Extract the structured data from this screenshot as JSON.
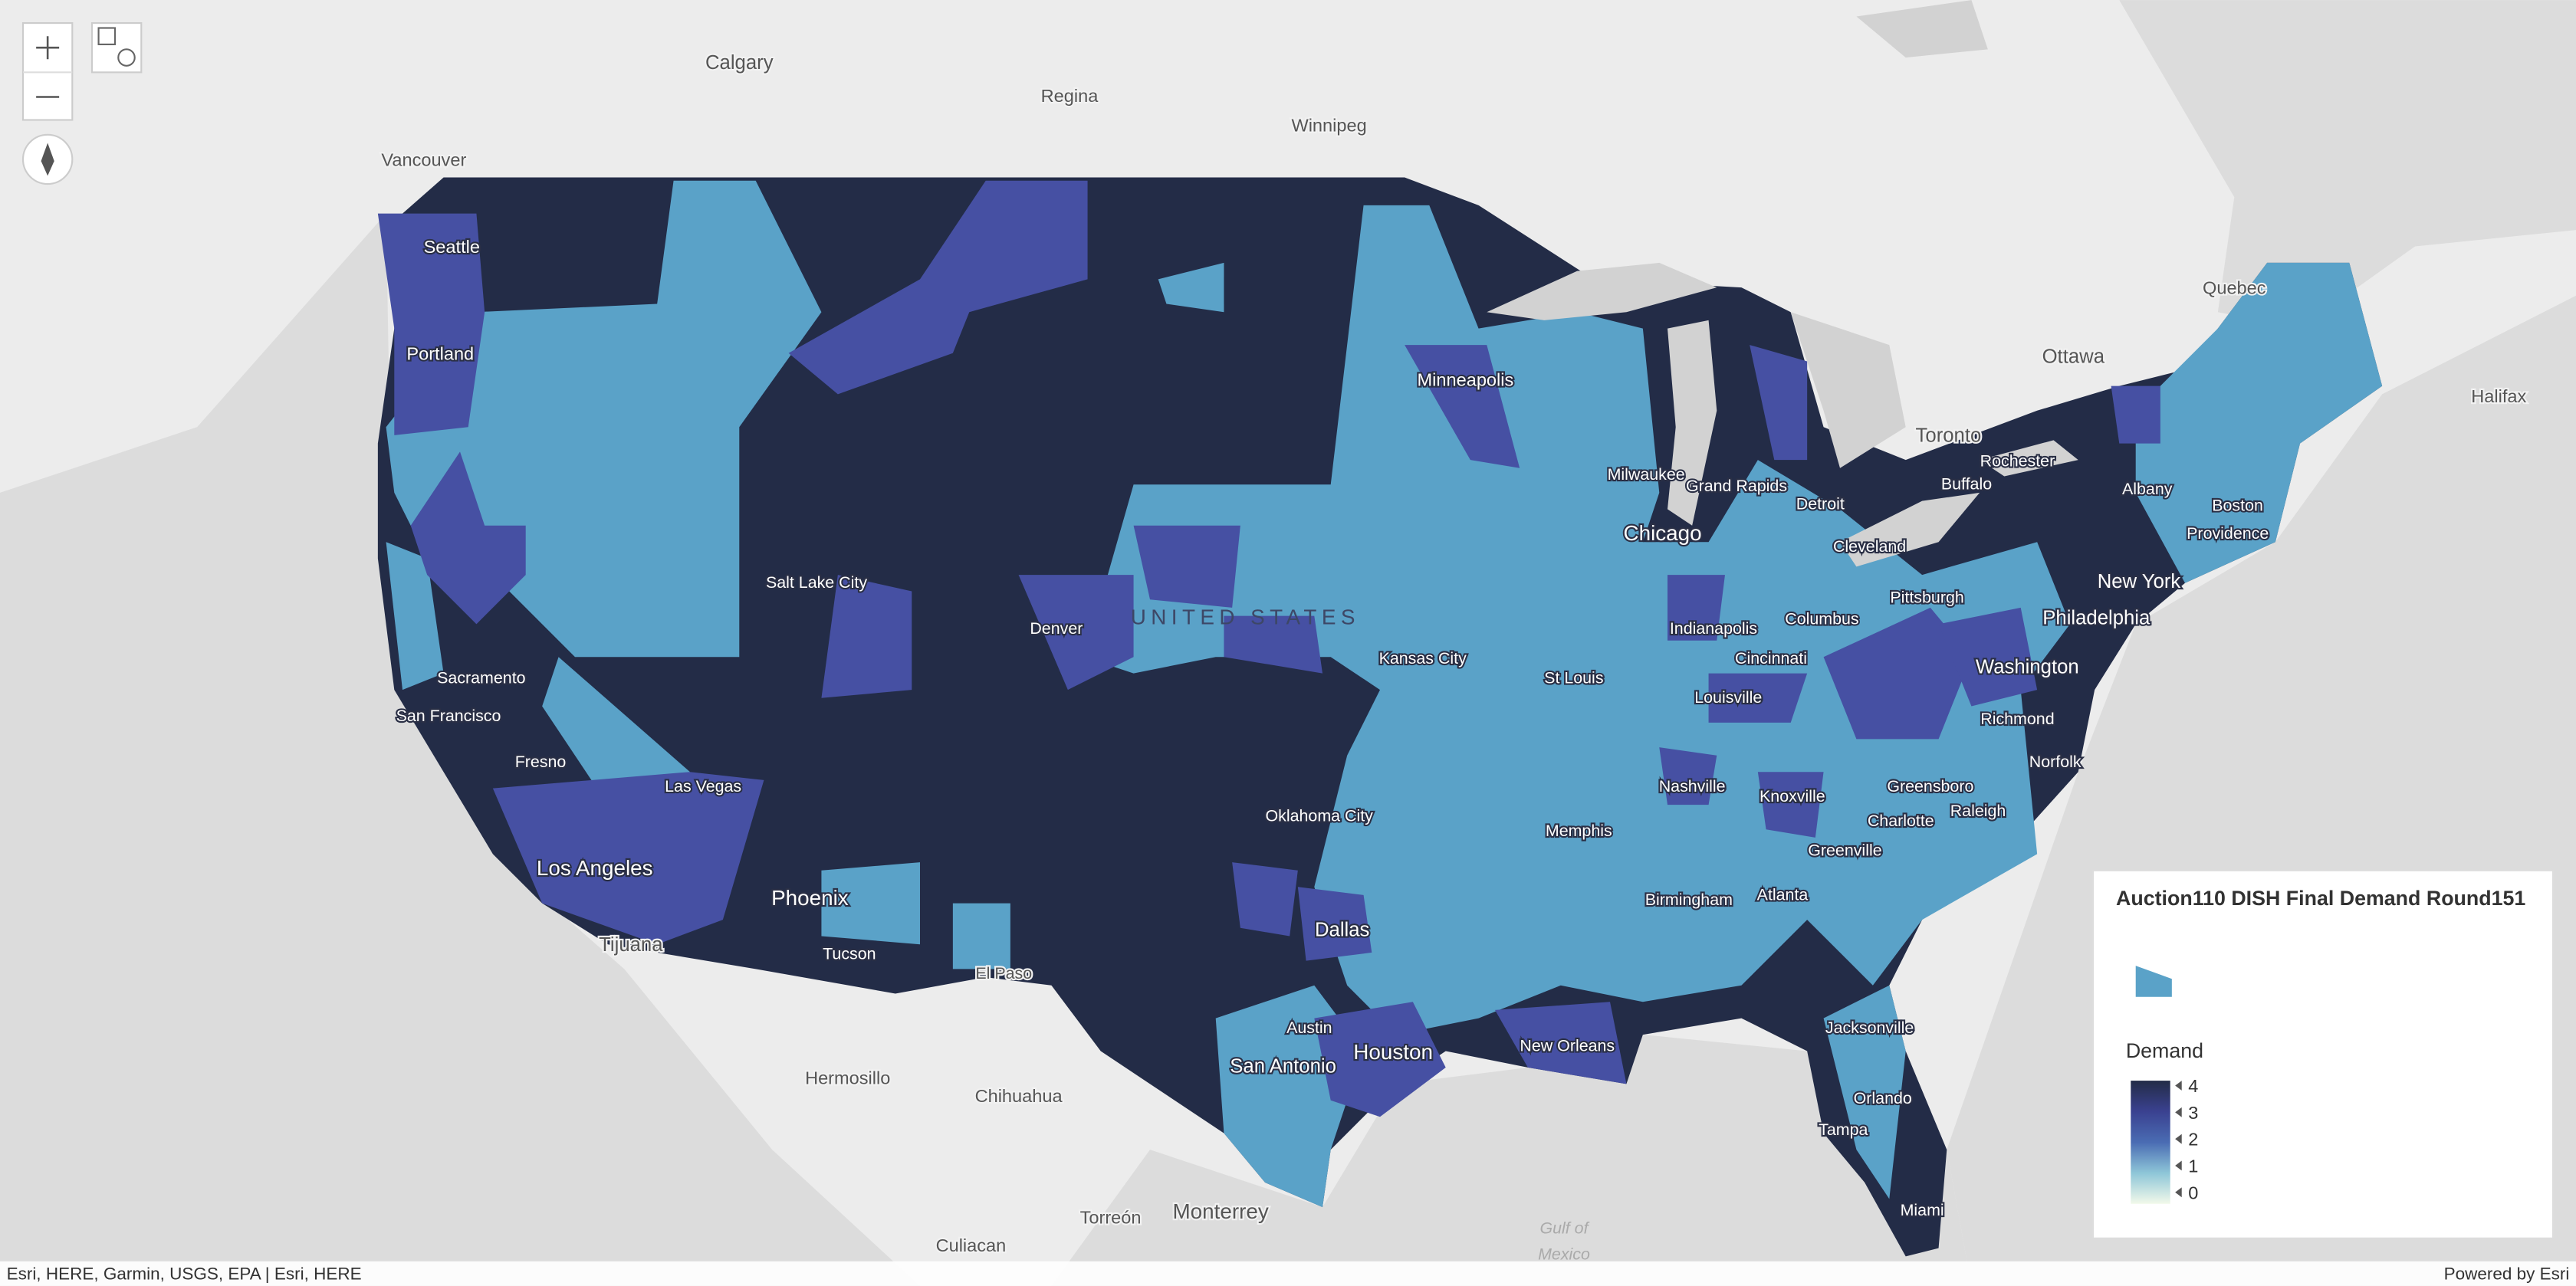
{
  "map": {
    "labels": [
      "Calgary",
      "Regina",
      "Winnipeg",
      "Vancouver",
      "Seattle",
      "Portland",
      "Minneapolis",
      "Quebec",
      "Ottawa",
      "Halifax",
      "Toronto",
      "Rochester",
      "Albany",
      "Buffalo",
      "Boston",
      "Providence",
      "Milwaukee",
      "Grand Rapids",
      "Detroit",
      "Cleveland",
      "Chicago",
      "Pittsburgh",
      "New York",
      "Salt Lake City",
      "Denver",
      "Indianapolis",
      "Columbus",
      "Philadelphia",
      "Cincinnati",
      "Kansas City",
      "St Louis",
      "Washington",
      "Louisville",
      "Sacramento",
      "San Francisco",
      "Richmond",
      "Fresno",
      "Las Vegas",
      "Nashville",
      "Knoxville",
      "Norfolk",
      "Greensboro",
      "Raleigh",
      "Charlotte",
      "Oklahoma City",
      "Memphis",
      "Greenville",
      "Los Angeles",
      "Birmingham",
      "Atlanta",
      "Phoenix",
      "Dallas",
      "Tijuana",
      "Tucson",
      "El Paso",
      "Jacksonville",
      "Austin",
      "Houston",
      "New Orleans",
      "San Antonio",
      "Hermosillo",
      "Chihuahua",
      "Orlando",
      "Tampa",
      "Miami",
      "Torreón",
      "Monterrey",
      "Culiacan"
    ],
    "country_label": "UNITED STATES",
    "water_label": [
      "Gulf of",
      "Mexico"
    ]
  },
  "legend": {
    "title": "Auction110 DISH Final Demand Round151",
    "field": "Demand",
    "ticks": [
      4,
      3,
      2,
      1,
      0
    ]
  },
  "attribution": "Esri, HERE, Garmin, USGS, EPA | Esri, HERE",
  "powered_by": "Powered by Esri"
}
